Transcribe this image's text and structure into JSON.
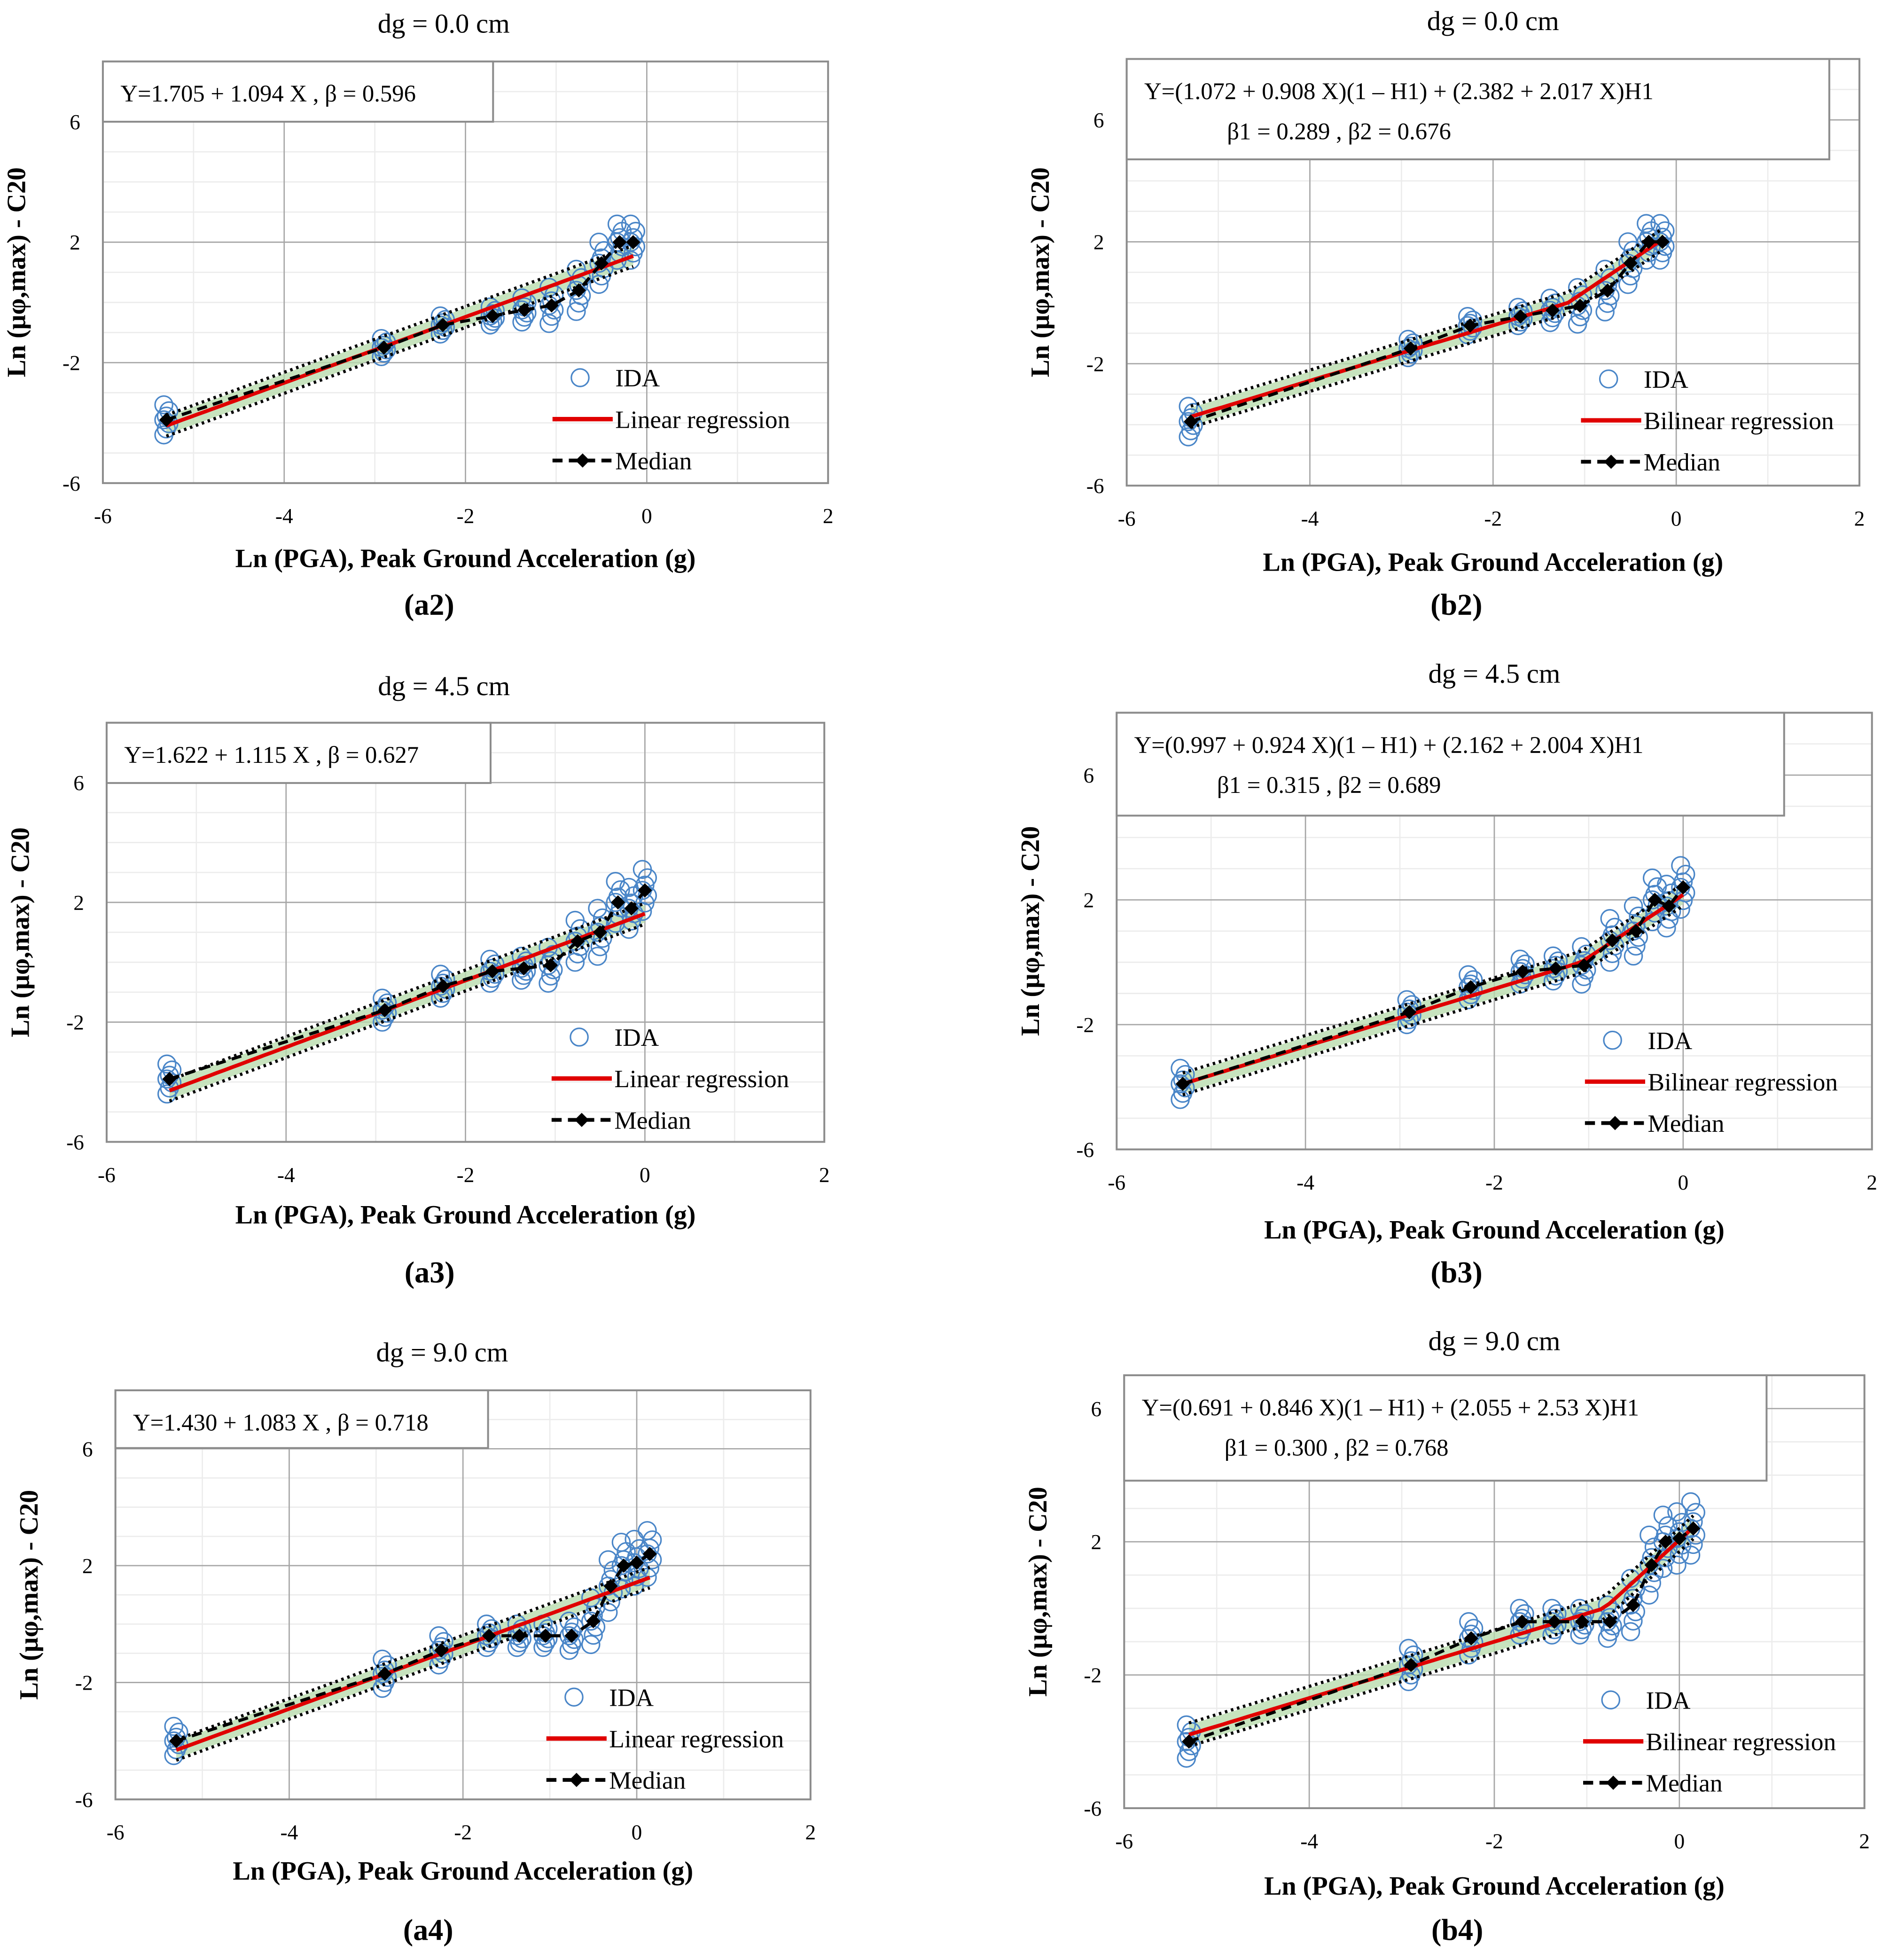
{
  "chart_data": [
    {
      "id": "a2",
      "type": "scatter",
      "title": "dg = 0.0 cm",
      "caption": "(a2)",
      "xlabel": "Ln (PGA), Peak Ground Acceleration (g)",
      "ylabel": "Ln (μφ,max) - C20",
      "xlim": [
        -6,
        2
      ],
      "ylim": [
        -6,
        8
      ],
      "xticks": [
        -6,
        -4,
        -2,
        0,
        2
      ],
      "yticks": [
        -6,
        -2,
        2,
        6
      ],
      "grid": true,
      "legend_placement": "bottom-right",
      "equation": [
        "Y=1.705 + 1.094 X , β = 0.596"
      ],
      "regression": {
        "type": "linear",
        "a": 1.705,
        "b": 1.094
      },
      "legend": [
        "IDA",
        "Linear regression",
        "Median"
      ],
      "median": {
        "x": [
          -5.3,
          -2.9,
          -2.25,
          -1.7,
          -1.35,
          -1.05,
          -0.75,
          -0.5,
          -0.3,
          -0.15
        ],
        "y": [
          -3.9,
          -1.5,
          -0.75,
          -0.45,
          -0.25,
          -0.1,
          0.4,
          1.3,
          2.0,
          2.0
        ]
      },
      "ida_spread": [
        0.5,
        0.3,
        0.3,
        0.3,
        0.4,
        0.6,
        0.7,
        0.7,
        0.6,
        0.6
      ]
    },
    {
      "id": "b2",
      "type": "scatter",
      "title": "dg = 0.0 cm",
      "caption": "(b2)",
      "xlabel": "Ln (PGA), Peak Ground Acceleration (g)",
      "ylabel": "Ln (μφ,max) - C20",
      "xlim": [
        -6,
        2
      ],
      "ylim": [
        -6,
        8
      ],
      "xticks": [
        -6,
        -4,
        -2,
        0,
        2
      ],
      "yticks": [
        -6,
        -2,
        2,
        6
      ],
      "grid": true,
      "legend_placement": "bottom-right",
      "equation": [
        "Y=(1.072 + 0.908 X)(1 – H1)  + (2.382 + 2.017 X)H1",
        "β1 = 0.289 , β2 = 0.676"
      ],
      "regression": {
        "type": "bilinear",
        "a1": 1.072,
        "b1": 0.908,
        "a2": 2.382,
        "b2": 2.017
      },
      "legend": [
        "IDA",
        "Bilinear regression",
        "Median"
      ],
      "median": {
        "x": [
          -5.3,
          -2.9,
          -2.25,
          -1.7,
          -1.35,
          -1.05,
          -0.75,
          -0.5,
          -0.3,
          -0.15
        ],
        "y": [
          -3.9,
          -1.5,
          -0.75,
          -0.45,
          -0.25,
          -0.1,
          0.4,
          1.3,
          2.0,
          2.0
        ]
      },
      "ida_spread": [
        0.5,
        0.3,
        0.3,
        0.3,
        0.4,
        0.6,
        0.7,
        0.7,
        0.6,
        0.6
      ]
    },
    {
      "id": "a3",
      "type": "scatter",
      "title": "dg = 4.5 cm",
      "caption": "(a3)",
      "xlabel": "Ln (PGA), Peak Ground Acceleration (g)",
      "ylabel": "Ln (μφ,max) - C20",
      "xlim": [
        -6,
        2
      ],
      "ylim": [
        -6,
        8
      ],
      "xticks": [
        -6,
        -4,
        -2,
        0,
        2
      ],
      "yticks": [
        -6,
        -2,
        2,
        6
      ],
      "grid": true,
      "legend_placement": "bottom-right",
      "equation": [
        "Y=1.622 + 1.115 X , β = 0.627"
      ],
      "regression": {
        "type": "linear",
        "a": 1.622,
        "b": 1.115
      },
      "legend": [
        "IDA",
        "Linear regression",
        "Median"
      ],
      "median": {
        "x": [
          -5.3,
          -2.9,
          -2.25,
          -1.7,
          -1.35,
          -1.05,
          -0.75,
          -0.5,
          -0.3,
          -0.15,
          0.0
        ],
        "y": [
          -3.9,
          -1.6,
          -0.8,
          -0.3,
          -0.2,
          -0.1,
          0.7,
          1.0,
          2.0,
          1.8,
          2.4
        ]
      },
      "ida_spread": [
        0.5,
        0.4,
        0.4,
        0.4,
        0.4,
        0.6,
        0.7,
        0.8,
        0.7,
        0.7,
        0.7
      ]
    },
    {
      "id": "b3",
      "type": "scatter",
      "title": "dg = 4.5 cm",
      "caption": "(b3)",
      "xlabel": "Ln (PGA), Peak Ground Acceleration (g)",
      "ylabel": "Ln (μφ,max) - C20",
      "xlim": [
        -6,
        2
      ],
      "ylim": [
        -6,
        8
      ],
      "xticks": [
        -6,
        -4,
        -2,
        0,
        2
      ],
      "yticks": [
        -6,
        -2,
        2,
        6
      ],
      "grid": true,
      "legend_placement": "bottom-right",
      "equation": [
        "Y=(0.997 + 0.924 X)(1 – H1)  + (2.162 + 2.004 X)H1",
        "β1 = 0.315 , β2 = 0.689"
      ],
      "regression": {
        "type": "bilinear",
        "a1": 0.997,
        "b1": 0.924,
        "a2": 2.162,
        "b2": 2.004
      },
      "legend": [
        "IDA",
        "Bilinear regression",
        "Median"
      ],
      "median": {
        "x": [
          -5.3,
          -2.9,
          -2.25,
          -1.7,
          -1.35,
          -1.05,
          -0.75,
          -0.5,
          -0.3,
          -0.15,
          0.0
        ],
        "y": [
          -3.9,
          -1.6,
          -0.8,
          -0.3,
          -0.2,
          -0.1,
          0.7,
          1.0,
          2.0,
          1.8,
          2.4
        ]
      },
      "ida_spread": [
        0.5,
        0.4,
        0.4,
        0.4,
        0.4,
        0.6,
        0.7,
        0.8,
        0.7,
        0.7,
        0.7
      ]
    },
    {
      "id": "a4",
      "type": "scatter",
      "title": "dg = 9.0 cm",
      "caption": "(a4)",
      "xlabel": "Ln (PGA), Peak Ground Acceleration (g)",
      "ylabel": "Ln (μφ,max) - C20",
      "xlim": [
        -6,
        2
      ],
      "ylim": [
        -6,
        8
      ],
      "xticks": [
        -6,
        -4,
        -2,
        0,
        2
      ],
      "yticks": [
        -6,
        -2,
        2,
        6
      ],
      "grid": true,
      "legend_placement": "bottom-right",
      "equation": [
        "Y=1.430 + 1.083 X , β = 0.718"
      ],
      "regression": {
        "type": "linear",
        "a": 1.43,
        "b": 1.083
      },
      "legend": [
        "IDA",
        "Linear regression",
        "Median"
      ],
      "median": {
        "x": [
          -5.3,
          -2.9,
          -2.25,
          -1.7,
          -1.35,
          -1.05,
          -0.75,
          -0.5,
          -0.3,
          -0.15,
          0.0,
          0.15
        ],
        "y": [
          -4.0,
          -1.7,
          -0.9,
          -0.4,
          -0.4,
          -0.4,
          -0.4,
          0.1,
          1.3,
          2.0,
          2.1,
          2.4
        ]
      },
      "ida_spread": [
        0.5,
        0.5,
        0.5,
        0.4,
        0.4,
        0.4,
        0.5,
        0.8,
        0.9,
        0.8,
        0.8,
        0.8
      ]
    },
    {
      "id": "b4",
      "type": "scatter",
      "title": "dg = 9.0 cm",
      "caption": "(b4)",
      "xlabel": "Ln (PGA), Peak Ground Acceleration (g)",
      "ylabel": "Ln (μφ,max) - C20",
      "xlim": [
        -6,
        2
      ],
      "ylim": [
        -6,
        7
      ],
      "xticks": [
        -6,
        -4,
        -2,
        0,
        2
      ],
      "yticks": [
        -6,
        -2,
        2,
        6
      ],
      "grid": true,
      "legend_placement": "bottom-right",
      "equation": [
        "Y=(0.691 + 0.846 X)(1 – H1)  + (2.055 + 2.53 X)H1",
        "β1 = 0.300 , β2 = 0.768"
      ],
      "regression": {
        "type": "bilinear",
        "a1": 0.691,
        "b1": 0.846,
        "a2": 2.055,
        "b2": 2.53
      },
      "legend": [
        "IDA",
        "Bilinear regression",
        "Median"
      ],
      "median": {
        "x": [
          -5.3,
          -2.9,
          -2.25,
          -1.7,
          -1.35,
          -1.05,
          -0.75,
          -0.5,
          -0.3,
          -0.15,
          0.0,
          0.15
        ],
        "y": [
          -4.0,
          -1.7,
          -0.9,
          -0.4,
          -0.4,
          -0.4,
          -0.4,
          0.1,
          1.3,
          2.0,
          2.1,
          2.4
        ]
      },
      "ida_spread": [
        0.5,
        0.5,
        0.5,
        0.4,
        0.4,
        0.4,
        0.5,
        0.8,
        0.9,
        0.8,
        0.8,
        0.8
      ]
    }
  ],
  "colors": {
    "ida": "#4a86c8",
    "regression": "#e00000",
    "median": "#000000",
    "band": "#b9dcae",
    "grid_major": "#a6a6a6",
    "grid_minor": "#ececec"
  }
}
